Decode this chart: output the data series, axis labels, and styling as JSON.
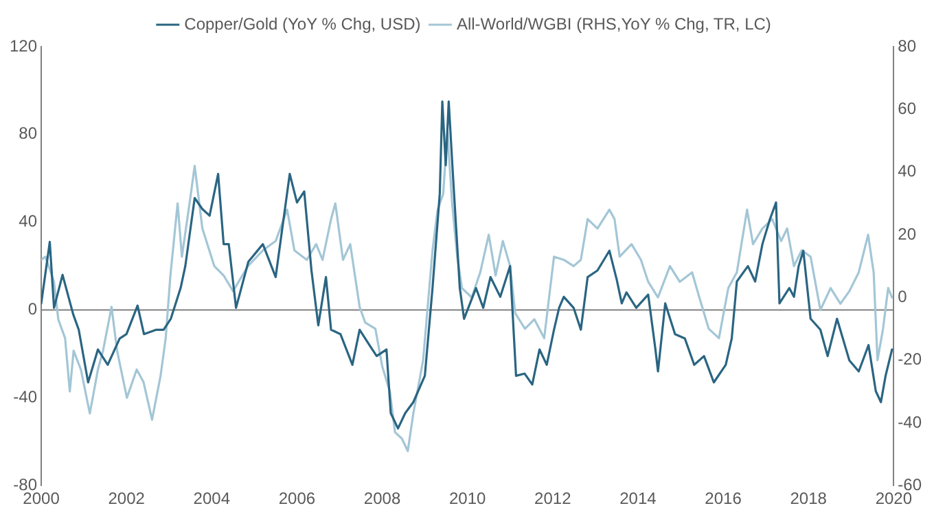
{
  "chart_data": {
    "type": "line",
    "x": [
      2000.0,
      2000.2,
      2000.3,
      2000.5,
      2000.75,
      2000.88,
      2001.1,
      2001.33,
      2001.56,
      2001.84,
      2002.0,
      2002.26,
      2002.41,
      2002.7,
      2002.87,
      2003.04,
      2003.27,
      2003.38,
      2003.6,
      2003.78,
      2003.95,
      2004.15,
      2004.28,
      2004.4,
      2004.57,
      2004.86,
      2005.2,
      2005.5,
      2005.83,
      2006.0,
      2006.17,
      2006.34,
      2006.5,
      2006.68,
      2006.8,
      2007.02,
      2007.3,
      2007.47,
      2007.7,
      2007.87,
      2008.1,
      2008.2,
      2008.37,
      2008.54,
      2008.73,
      2009.0,
      2009.18,
      2009.35,
      2009.41,
      2009.49,
      2009.56,
      2009.67,
      2009.82,
      2009.92,
      2010.2,
      2010.37,
      2010.54,
      2010.77,
      2011.0,
      2011.14,
      2011.34,
      2011.52,
      2011.69,
      2011.86,
      2012.03,
      2012.15,
      2012.26,
      2012.49,
      2012.66,
      2012.82,
      2013.05,
      2013.33,
      2013.5,
      2013.62,
      2013.73,
      2013.96,
      2014.24,
      2014.41,
      2014.47,
      2014.64,
      2014.87,
      2015.1,
      2015.32,
      2015.55,
      2015.78,
      2016.06,
      2016.2,
      2016.32,
      2016.58,
      2016.75,
      2016.92,
      2017.09,
      2017.24,
      2017.32,
      2017.55,
      2017.66,
      2017.77,
      2017.88,
      2018.05,
      2018.28,
      2018.45,
      2018.67,
      2018.96,
      2019.18,
      2019.41,
      2019.58,
      2019.7,
      2019.81,
      2019.96
    ],
    "series": [
      {
        "name": "Copper/Gold (YoY % Chg, USD)",
        "color": "#2a6582",
        "values": [
          3,
          31,
          1,
          16,
          -2,
          -9,
          -33,
          -18,
          -25,
          -13,
          -11,
          2,
          -11,
          -9,
          -9,
          -4,
          10,
          20,
          51,
          46,
          43,
          62,
          30,
          30,
          1,
          22,
          30,
          15,
          62,
          49,
          54,
          18,
          -7,
          15,
          -9,
          -11,
          -25,
          -9,
          -16,
          -21,
          -18,
          -47,
          -54,
          -47,
          -42,
          -30,
          10,
          53,
          95,
          66,
          95,
          58,
          10,
          -4,
          10,
          1,
          15,
          6,
          20,
          -30,
          -29,
          -34,
          -18,
          -25,
          -9,
          1,
          6,
          1,
          -9,
          15,
          18,
          27,
          14,
          3,
          8,
          1,
          7,
          -18,
          -28,
          3,
          -11,
          -13,
          -25,
          -21,
          -33,
          -25,
          -13,
          13,
          20,
          13,
          30,
          41,
          49,
          3,
          10,
          6,
          20,
          27,
          -4,
          -9,
          -21,
          -4,
          -23,
          -28,
          -16,
          -37,
          -42,
          -30,
          -18
        ]
      },
      {
        "name": "All-World/WGBI (RHS,YoY % Chg, TR, LC)",
        "color": "#a3c6d6",
        "axis": "y2",
        "x": [
          2000.0,
          2000.1,
          2000.3,
          2000.4,
          2000.56,
          2000.67,
          2000.76,
          2000.93,
          2001.14,
          2001.33,
          2001.45,
          2001.65,
          2001.78,
          2002.01,
          2002.24,
          2002.4,
          2002.6,
          2002.8,
          2002.92,
          2003.03,
          2003.2,
          2003.3,
          2003.5,
          2003.6,
          2003.78,
          2004.06,
          2004.28,
          2004.5,
          2004.85,
          2005.2,
          2005.5,
          2005.77,
          2005.94,
          2006.23,
          2006.45,
          2006.6,
          2006.8,
          2006.9,
          2007.08,
          2007.25,
          2007.47,
          2007.6,
          2007.84,
          2008.0,
          2008.18,
          2008.3,
          2008.46,
          2008.6,
          2008.73,
          2008.96,
          2009.18,
          2009.3,
          2009.43,
          2009.53,
          2009.64,
          2009.76,
          2009.87,
          2010.1,
          2010.3,
          2010.5,
          2010.66,
          2010.83,
          2011.0,
          2011.12,
          2011.35,
          2011.57,
          2011.8,
          2012.03,
          2012.26,
          2012.49,
          2012.66,
          2012.82,
          2013.05,
          2013.33,
          2013.45,
          2013.57,
          2013.85,
          2014.07,
          2014.24,
          2014.47,
          2014.75,
          2014.98,
          2015.27,
          2015.44,
          2015.66,
          2015.9,
          2016.12,
          2016.32,
          2016.56,
          2016.7,
          2016.92,
          2017.15,
          2017.36,
          2017.5,
          2017.66,
          2017.84,
          2018.05,
          2018.28,
          2018.52,
          2018.75,
          2018.96,
          2019.18,
          2019.4,
          2019.53,
          2019.62,
          2019.75,
          2019.87,
          2019.96
        ],
        "values": [
          12,
          13,
          5,
          -7,
          -13,
          -30,
          -17,
          -23,
          -37,
          -23,
          -17,
          -3,
          -17,
          -32,
          -23,
          -27,
          -39,
          -25,
          -13,
          7,
          30,
          13,
          32,
          42,
          22,
          10,
          7,
          2,
          10,
          15,
          18,
          28,
          15,
          12,
          17,
          12,
          25,
          30,
          12,
          17,
          -3,
          -8,
          -10,
          -22,
          -30,
          -43,
          -45,
          -49,
          -37,
          -20,
          15,
          28,
          33,
          53,
          30,
          13,
          3,
          0,
          8,
          20,
          7,
          18,
          10,
          -5,
          -10,
          -7,
          -13,
          13,
          12,
          10,
          12,
          25,
          22,
          28,
          25,
          13,
          17,
          12,
          5,
          0,
          10,
          5,
          8,
          0,
          -10,
          -13,
          3,
          8,
          28,
          17,
          22,
          25,
          18,
          22,
          10,
          15,
          13,
          -4,
          3,
          -2,
          2,
          8,
          20,
          8,
          -20,
          -10,
          3,
          0
        ]
      }
    ],
    "xlim": [
      2000,
      2020
    ],
    "xticks": [
      2000,
      2002,
      2004,
      2006,
      2008,
      2010,
      2012,
      2014,
      2016,
      2018,
      2020
    ],
    "ylim": [
      -80,
      120
    ],
    "yticks": [
      -80,
      -40,
      0,
      40,
      80,
      120
    ],
    "y2lim": [
      -60,
      80
    ],
    "y2ticks": [
      -60,
      -40,
      -20,
      0,
      20,
      40,
      60,
      80
    ],
    "ref_lines": [
      {
        "axis": "y",
        "value": 0,
        "color": "#808080"
      }
    ],
    "grid": false,
    "legend": "top",
    "marker": "none",
    "line_style": "solid"
  }
}
